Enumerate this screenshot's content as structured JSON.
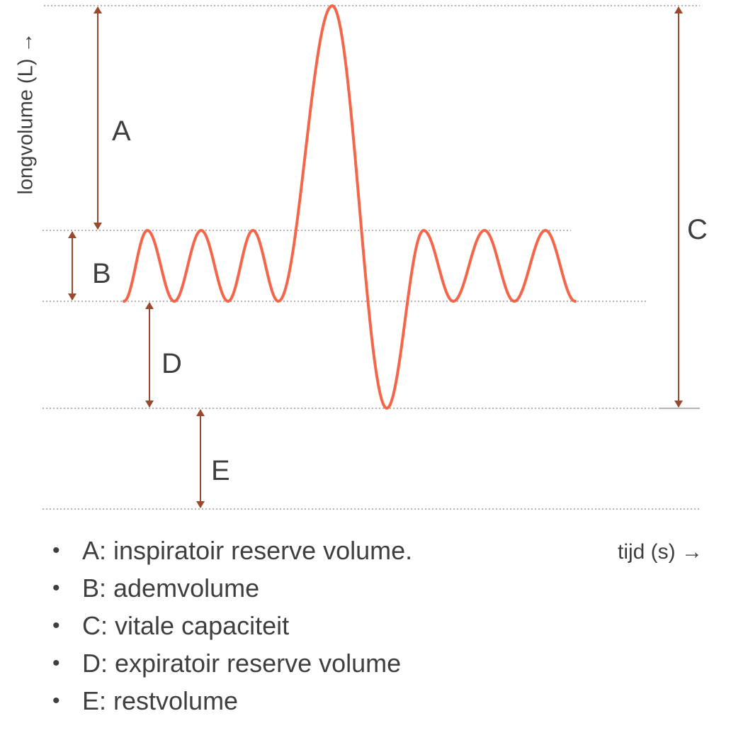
{
  "axes": {
    "y_label": "longvolume (L) →",
    "x_label": "tijd (s) →"
  },
  "levels": [
    "top",
    "tidal_top",
    "tidal_bottom",
    "min",
    "bottom"
  ],
  "measurements": [
    {
      "letter": "A",
      "from": "top",
      "to": "tidal_top"
    },
    {
      "letter": "B",
      "from": "tidal_top",
      "to": "tidal_bottom"
    },
    {
      "letter": "C",
      "from": "top",
      "to": "min"
    },
    {
      "letter": "D",
      "from": "tidal_bottom",
      "to": "min"
    },
    {
      "letter": "E",
      "from": "min",
      "to": "bottom"
    }
  ],
  "legend": [
    {
      "bullet": "•",
      "text": "A: inspiratoir reserve volume."
    },
    {
      "bullet": "•",
      "text": "B: ademvolume"
    },
    {
      "bullet": "•",
      "text": "C: vitale capaciteit"
    },
    {
      "bullet": "•",
      "text": "D: expiratoir reserve volume"
    },
    {
      "bullet": "•",
      "text": "E: restvolume"
    }
  ],
  "colors": {
    "curve": "#f4654a",
    "arrow": "#9a4a2c",
    "guide": "#9a9a9a",
    "text": "#3f3f3f"
  }
}
